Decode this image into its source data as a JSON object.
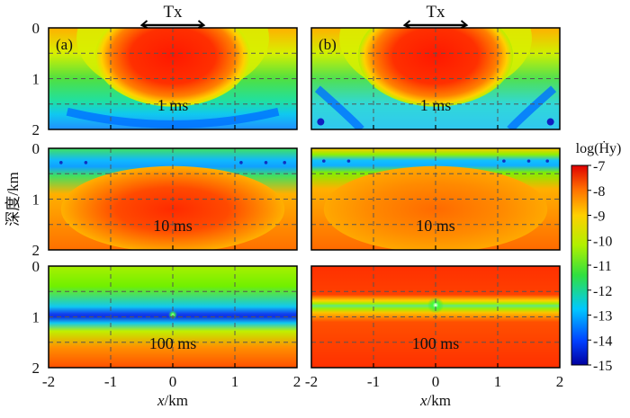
{
  "chart_data": {
    "type": "heatmap",
    "transmitter": {
      "label": "Tx",
      "x_extent_km": [
        -0.5,
        0.5
      ]
    },
    "x_axis": {
      "label_italic": "x",
      "label_unit": "/km",
      "ticks": [
        "-2",
        "-1",
        "0",
        "1",
        "2"
      ],
      "range": [
        -2,
        2
      ]
    },
    "y_axis": {
      "label": "深度/km",
      "range": [
        0,
        2
      ],
      "inverted": true
    },
    "depth_ticks": [
      "0",
      "1",
      "2"
    ],
    "columns": [
      {
        "id": "a",
        "label": "(a)"
      },
      {
        "id": "b",
        "label": "(b)"
      }
    ],
    "rows": [
      {
        "time": "1 ms"
      },
      {
        "time": "10 ms"
      },
      {
        "time": "100 ms"
      }
    ],
    "colorbar": {
      "title": "log(Ḣy)",
      "range": [
        -15,
        -7
      ],
      "ticks": [
        "-7",
        "-8",
        "-9",
        "-10",
        "-11",
        "-12",
        "-13",
        "-14",
        "-15"
      ],
      "colormap": "jet"
    },
    "grid": "dashed"
  }
}
